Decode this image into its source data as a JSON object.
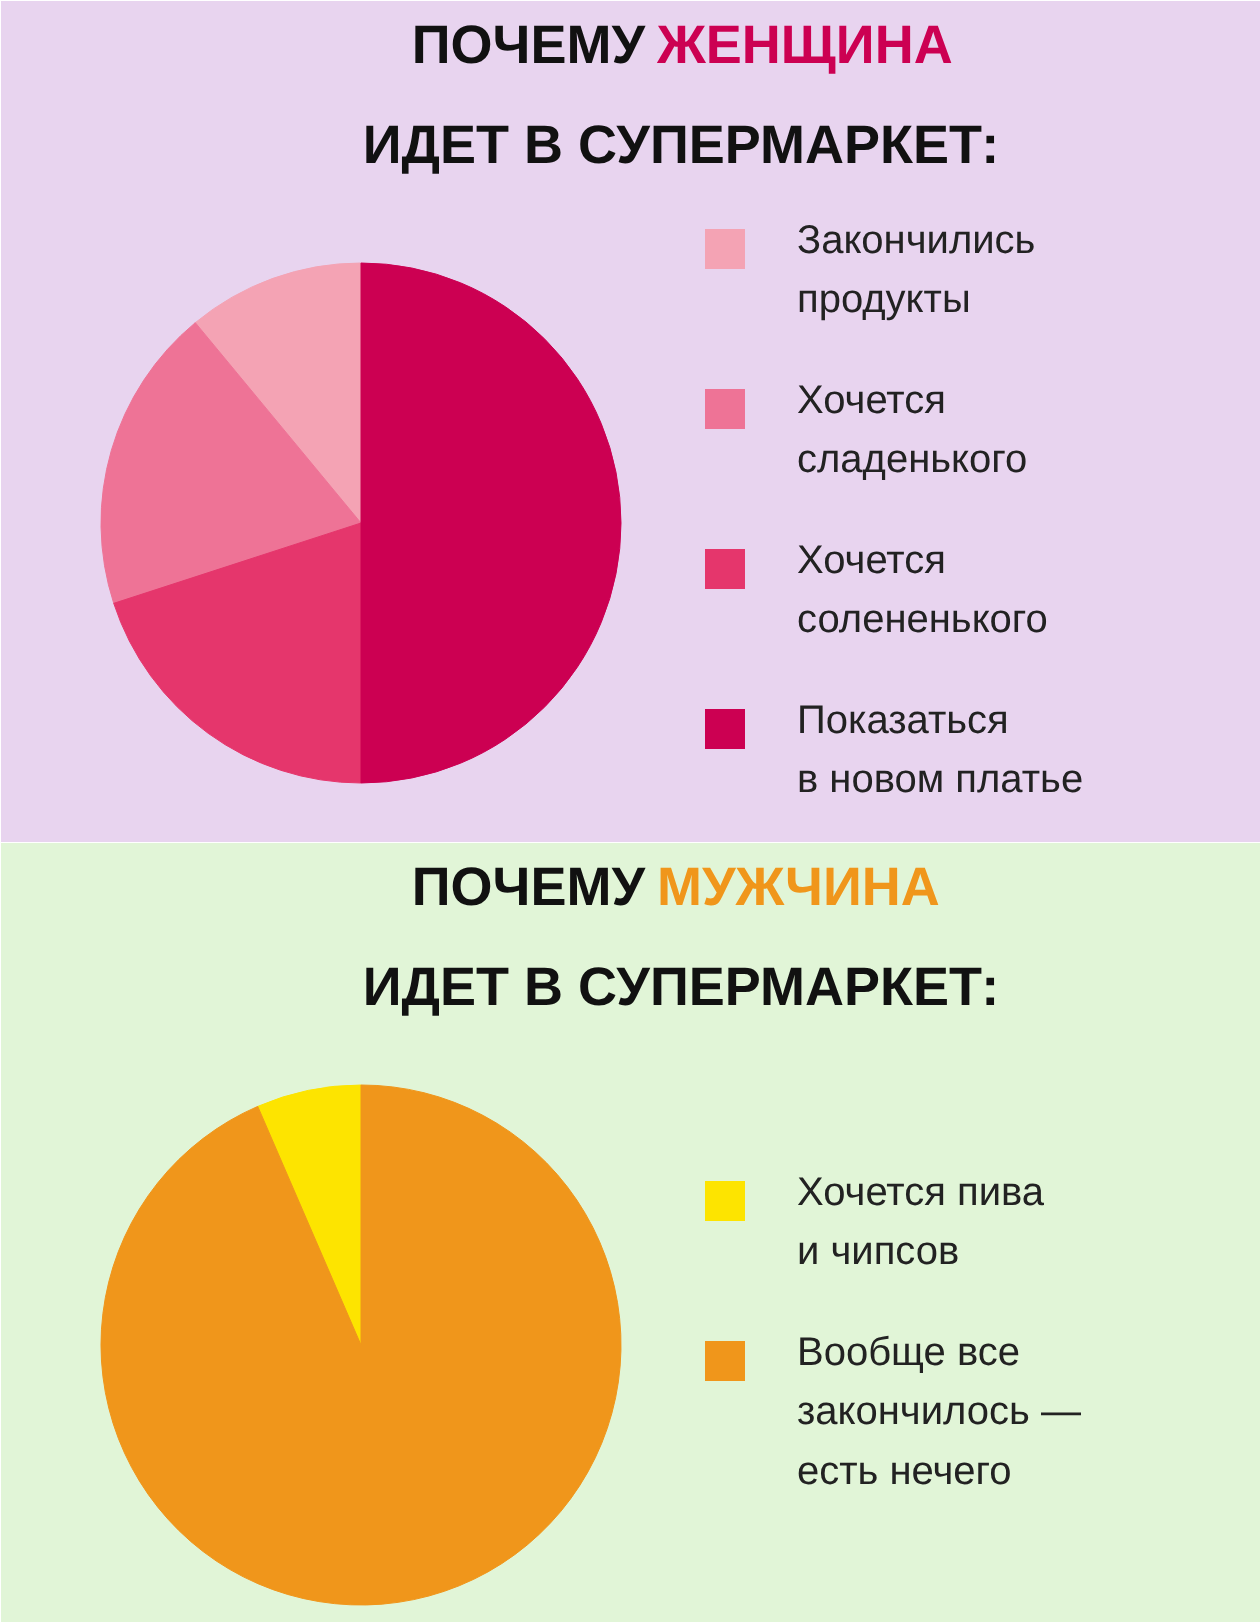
{
  "chart_data": [
    {
      "type": "pie",
      "title": "ПОЧЕМУ ЖЕНЩИНА ИДЕТ В СУПЕРМАРКЕТ:",
      "categories": [
        "Закончились\nпродукты",
        "Хочется\nсладенького",
        "Хочется\nсолененького",
        "Показаться\nв новом платье"
      ],
      "values": [
        11,
        19,
        20,
        50
      ],
      "colors": [
        "#f4a3b4",
        "#ee7396",
        "#e5366c",
        "#cc0052"
      ],
      "legend": "right"
    },
    {
      "type": "pie",
      "title": "ПОЧЕМУ МУЖЧИНА ИДЕТ В СУПЕРМАРКЕТ:",
      "categories": [
        "Хочется пива\nи чипсов",
        "Вообще все\nзакончилось —\nесть нечего"
      ],
      "values": [
        6.5,
        93.5
      ],
      "colors": [
        "#fde400",
        "#f0961b"
      ],
      "legend": "right"
    }
  ]
}
